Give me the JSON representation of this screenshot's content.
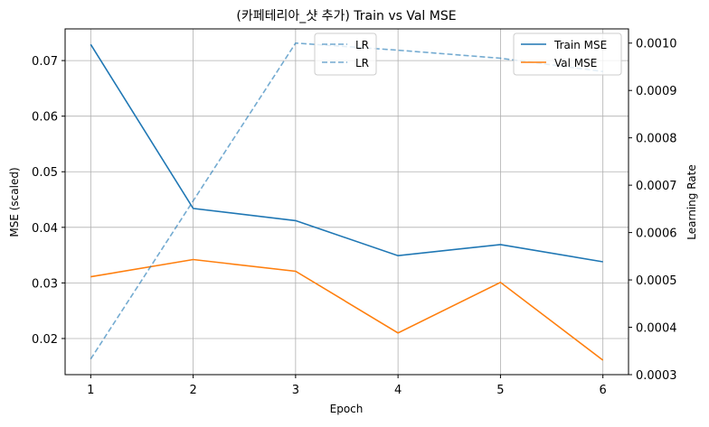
{
  "chart_data": {
    "type": "line",
    "title": "(카페테리아_샷 추가) Train vs Val MSE",
    "xlabel": "Epoch",
    "ylabel": "MSE (scaled)",
    "y2label": "Learning Rate",
    "x": [
      1,
      2,
      3,
      4,
      5,
      6
    ],
    "xlim": [
      0.75,
      6.25
    ],
    "ylim": [
      0.0135,
      0.0757
    ],
    "y2lim": [
      0.0003,
      0.00103
    ],
    "xticks": [
      "1",
      "2",
      "3",
      "4",
      "5",
      "6"
    ],
    "yticks": [
      "0.02",
      "0.03",
      "0.04",
      "0.05",
      "0.06",
      "0.07"
    ],
    "y2ticks": [
      "0.0003",
      "0.0004",
      "0.0005",
      "0.0006",
      "0.0007",
      "0.0008",
      "0.0009",
      "0.0010"
    ],
    "grid": true,
    "series": [
      {
        "name": "Train MSE",
        "axis": "left",
        "style": "solid",
        "color": "#1f77b4",
        "values": [
          0.0729,
          0.0434,
          0.0412,
          0.0349,
          0.0369,
          0.0338
        ]
      },
      {
        "name": "Val MSE",
        "axis": "left",
        "style": "solid",
        "color": "#ff7f0e",
        "values": [
          0.0311,
          0.0342,
          0.0321,
          0.021,
          0.0301,
          0.0161
        ]
      },
      {
        "name": "LR",
        "axis": "right",
        "style": "dashed",
        "color": "#1f77b4",
        "values": [
          0.000333,
          0.000667,
          0.001,
          0.000985,
          0.000968,
          0.00094
        ]
      }
    ],
    "legends": [
      {
        "position": "upper-center",
        "entries": [
          {
            "label": "LR",
            "color": "#1f77b4",
            "style": "dashed"
          },
          {
            "label": "LR",
            "color": "#1f77b4",
            "style": "dashed"
          }
        ]
      },
      {
        "position": "upper-right",
        "entries": [
          {
            "label": "Train MSE",
            "color": "#1f77b4",
            "style": "solid"
          },
          {
            "label": "Val MSE",
            "color": "#ff7f0e",
            "style": "solid"
          }
        ]
      }
    ]
  }
}
